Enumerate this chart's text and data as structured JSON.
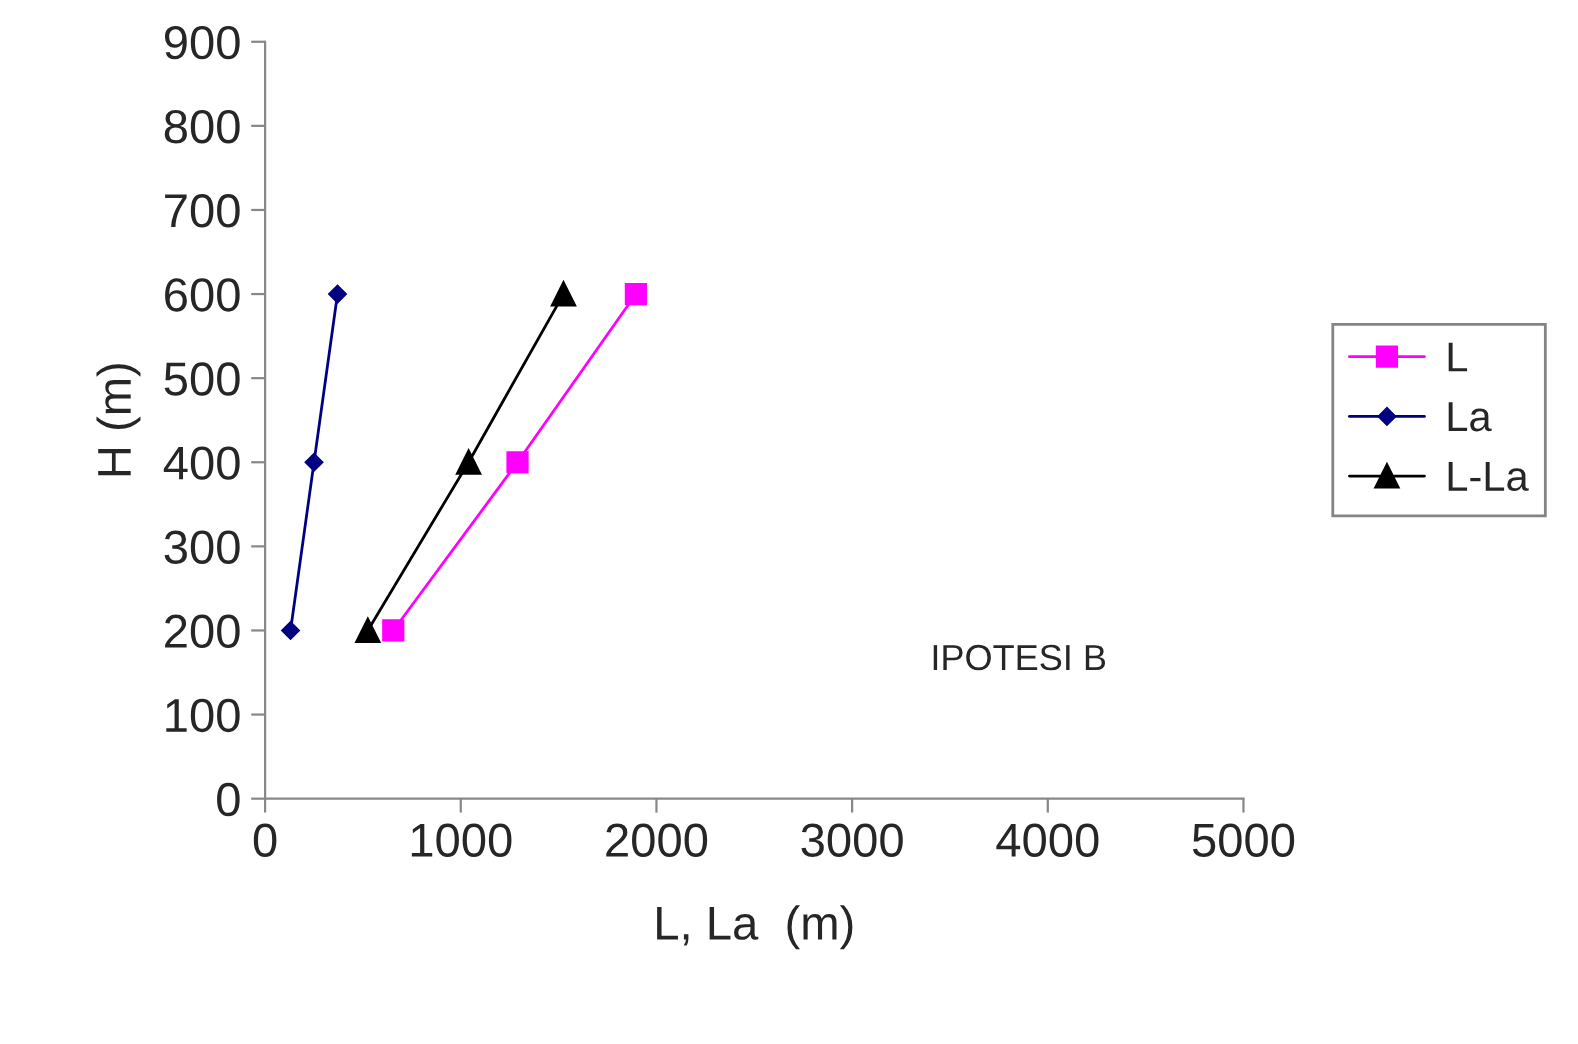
{
  "chart_data": {
    "type": "line",
    "xlabel": "L, La  (m)",
    "ylabel": "H (m)",
    "xlim": [
      0,
      5000
    ],
    "xticks": [
      0,
      1000,
      2000,
      3000,
      4000,
      5000
    ],
    "ylim": [
      0,
      900
    ],
    "yticks": [
      0,
      100,
      200,
      300,
      400,
      500,
      600,
      700,
      800,
      900
    ],
    "grid": false,
    "legend": "right",
    "annotations": [
      "IPOTESI B"
    ],
    "series": [
      {
        "name": "L",
        "color": "#ff00ff",
        "marker": "square",
        "x": [
          655,
          1290,
          1895
        ],
        "values": [
          200,
          400,
          600
        ]
      },
      {
        "name": "La",
        "color": "#000080",
        "marker": "diamond",
        "x": [
          130,
          250,
          370
        ],
        "values": [
          200,
          400,
          600
        ]
      },
      {
        "name": "L-La",
        "color": "#000000",
        "marker": "triangle",
        "x": [
          525,
          1040,
          1525
        ],
        "values": [
          200,
          400,
          600
        ]
      }
    ]
  }
}
